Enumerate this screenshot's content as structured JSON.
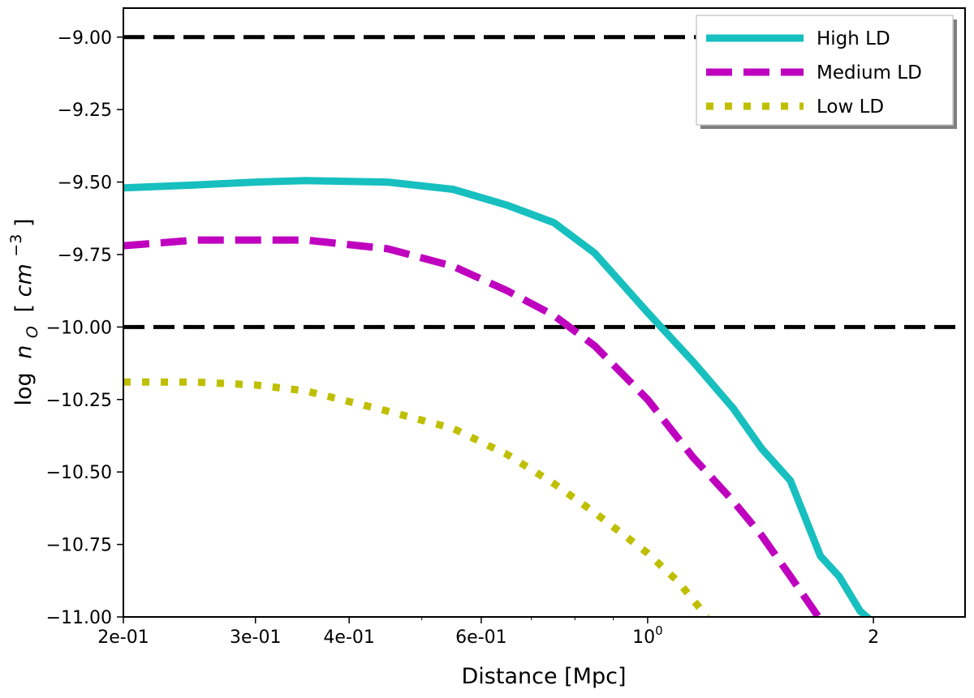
{
  "chart_data": {
    "type": "line",
    "title": "",
    "xlabel": "Distance [Mpc]",
    "ylabel_prefix": "log",
    "ylabel_symbol": "n",
    "ylabel_subscript": "O",
    "ylabel_units_open": "[",
    "ylabel_units_base": "cm",
    "ylabel_units_exp": "−3",
    "ylabel_units_close": "]",
    "xscale": "log",
    "xlim": [
      0.2,
      2.65
    ],
    "ylim": [
      -11.0,
      -8.9
    ],
    "x_ticks": [
      {
        "value": 0.2,
        "label": "2e-01"
      },
      {
        "value": 0.3,
        "label": "3e-01"
      },
      {
        "value": 0.4,
        "label": "4e-01"
      },
      {
        "value": 0.6,
        "label": "6e-01"
      },
      {
        "value": 1.0,
        "label_base": "10",
        "label_exp": "0"
      },
      {
        "value": 2.0,
        "label": "2"
      }
    ],
    "x_minor_ticks": [
      0.5,
      0.7,
      0.8,
      0.9
    ],
    "y_ticks": [
      {
        "value": -9.0,
        "label": "−9.00"
      },
      {
        "value": -9.25,
        "label": "−9.25"
      },
      {
        "value": -9.5,
        "label": "−9.50"
      },
      {
        "value": -9.75,
        "label": "−9.75"
      },
      {
        "value": -10.0,
        "label": "−10.00"
      },
      {
        "value": -10.25,
        "label": "−10.25"
      },
      {
        "value": -10.5,
        "label": "−10.50"
      },
      {
        "value": -10.75,
        "label": "−10.75"
      },
      {
        "value": -11.0,
        "label": "−11.00"
      }
    ],
    "reference_lines": [
      {
        "y": -9.0,
        "style": "dashed",
        "color": "#000000"
      },
      {
        "y": -10.0,
        "style": "dashed",
        "color": "#000000"
      }
    ],
    "legend_position": "top-right",
    "series": [
      {
        "name": "High LD",
        "color": "#17BFBF",
        "style": "solid",
        "x": [
          0.2,
          0.25,
          0.3,
          0.35,
          0.45,
          0.55,
          0.65,
          0.75,
          0.85,
          1.0,
          1.15,
          1.3,
          1.42,
          1.55,
          1.7,
          1.8,
          1.92,
          2.0
        ],
        "y": [
          -9.52,
          -9.51,
          -9.5,
          -9.495,
          -9.5,
          -9.525,
          -9.58,
          -9.64,
          -9.745,
          -9.95,
          -10.12,
          -10.28,
          -10.42,
          -10.53,
          -10.79,
          -10.86,
          -10.98,
          -11.02
        ]
      },
      {
        "name": "Medium LD",
        "color": "#BF00BF",
        "style": "dashed",
        "x": [
          0.2,
          0.25,
          0.3,
          0.35,
          0.45,
          0.55,
          0.65,
          0.75,
          0.85,
          1.0,
          1.15,
          1.3,
          1.42,
          1.55,
          1.7
        ],
        "y": [
          -9.72,
          -9.7,
          -9.7,
          -9.7,
          -9.73,
          -9.79,
          -9.875,
          -9.96,
          -10.065,
          -10.25,
          -10.45,
          -10.6,
          -10.72,
          -10.86,
          -11.01
        ]
      },
      {
        "name": "Low LD",
        "color": "#BFBF00",
        "style": "dotted",
        "x": [
          0.2,
          0.25,
          0.3,
          0.35,
          0.45,
          0.55,
          0.65,
          0.75,
          0.85,
          1.0,
          1.1,
          1.2
        ],
        "y": [
          -10.19,
          -10.19,
          -10.2,
          -10.22,
          -10.29,
          -10.35,
          -10.44,
          -10.54,
          -10.64,
          -10.78,
          -10.88,
          -11.0
        ]
      }
    ]
  }
}
